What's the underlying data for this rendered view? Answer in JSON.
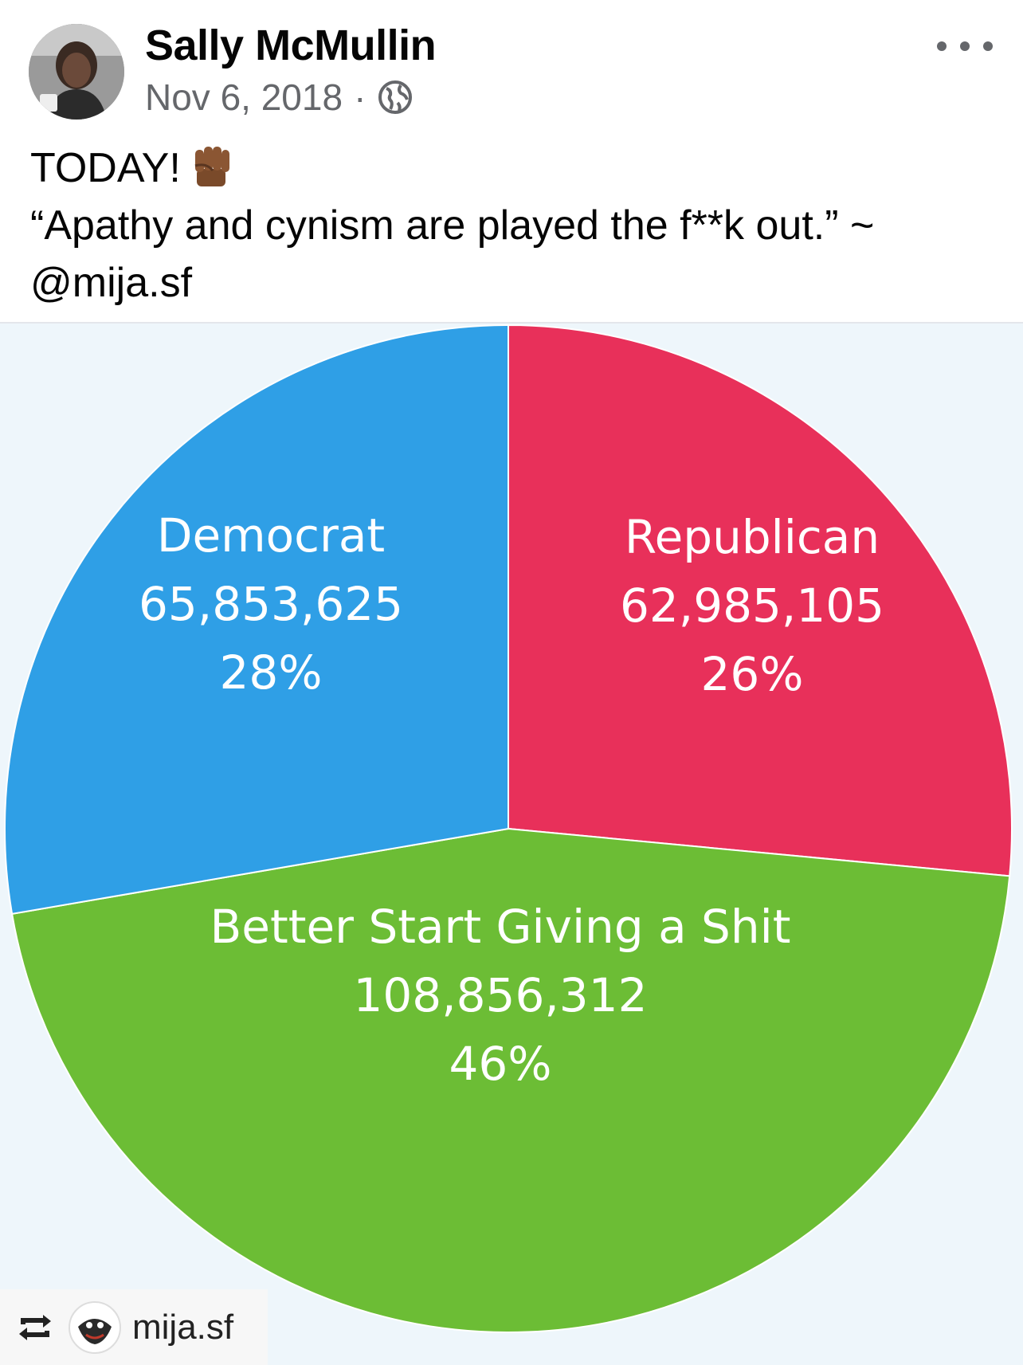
{
  "post": {
    "author": "Sally McMullin",
    "date": "Nov 6, 2018",
    "separator": "·",
    "privacy_icon": "globe-icon",
    "menu_icon": "more-options-icon",
    "text_line1": "TODAY!",
    "text_emoji": "raised-fist-icon",
    "text_line2": "“Apathy and cynism are played the f**k out.” ~",
    "text_line3": "@mija.sf"
  },
  "chart_data": {
    "type": "pie",
    "slices": [
      {
        "name": "Democrat",
        "value": 65853625,
        "value_label": "65,853,625",
        "percent_label": "28%",
        "color": "#2f9fe6"
      },
      {
        "name": "Republican",
        "value": 62985105,
        "value_label": "62,985,105",
        "percent_label": "26%",
        "color": "#e8305a"
      },
      {
        "name": "Better Start Giving a Shit",
        "value": 108856312,
        "value_label": "108,856,312",
        "percent_label": "46%",
        "color": "#6cbd35"
      }
    ]
  },
  "repost": {
    "icon": "repost-icon",
    "username": "mija.sf"
  }
}
